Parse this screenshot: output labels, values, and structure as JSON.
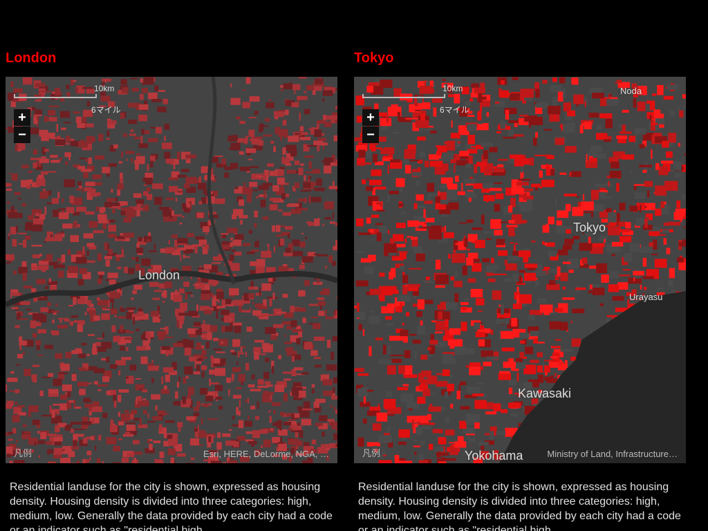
{
  "panels": [
    {
      "title": "London",
      "map": {
        "scale_km": "10km",
        "scale_mi": "6マイル",
        "zoom_in": "+",
        "zoom_out": "−",
        "places": [
          {
            "label": "London"
          }
        ],
        "legend": "凡例",
        "attribution": "Esri, HERE, DeLorme, NGA, …"
      },
      "description": "Residential landuse for the city is shown, expressed as housing density. Housing density is divided into three categories: high, medium, low. Generally the data provided by each city had a code or an indicator such as \"residential high"
    },
    {
      "title": "Tokyo",
      "map": {
        "scale_km": "10km",
        "scale_mi": "6マイル",
        "zoom_in": "+",
        "zoom_out": "−",
        "places": [
          {
            "label": "Noda"
          },
          {
            "label": "Tokyo"
          },
          {
            "label": "Urayasu"
          },
          {
            "label": "Kawasaki"
          },
          {
            "label": "Yokohama"
          }
        ],
        "legend": "凡例",
        "attribution": "Ministry of Land, Infrastructure…"
      },
      "description": "Residential landuse for the city is shown, expressed as housing density. Housing density is divided into three categories: high, medium, low. Generally the data provided by each city had a code or an indicator such as \"residential high"
    }
  ]
}
